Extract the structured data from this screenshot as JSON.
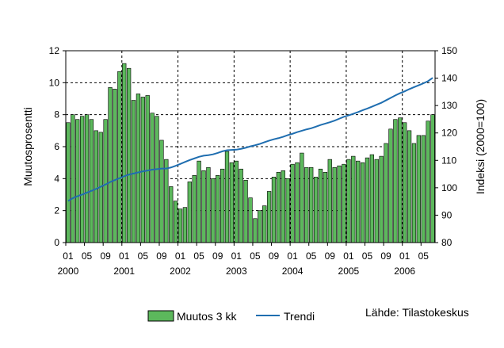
{
  "chart_data": {
    "type": "bar",
    "ylabel_left": "Muutosprosentti",
    "ylabel_right": "Indeksi (2000=100)",
    "ylim_left": [
      0,
      12
    ],
    "ylim_right": [
      80,
      150
    ],
    "yticks_left": [
      "0",
      "2",
      "4",
      "6",
      "8",
      "10",
      "12"
    ],
    "yticks_right": [
      "80",
      "90",
      "100",
      "110",
      "120",
      "130",
      "140",
      "150"
    ],
    "x_month_ticks": [
      "01",
      "05",
      "09",
      "01",
      "05",
      "09",
      "01",
      "05",
      "09",
      "01",
      "05",
      "09",
      "01",
      "05",
      "09",
      "01",
      "05",
      "09",
      "01",
      "05"
    ],
    "x_year_labels": [
      "2000",
      "2001",
      "2002",
      "2003",
      "2004",
      "2005",
      "2006"
    ],
    "grid": "dashed, vertical at each January and horizontal at each left-axis tick",
    "legend_position": "bottom-center",
    "series": [
      {
        "name": "Muutos 3 kk",
        "color": "#5cb85c",
        "values": [
          7.5,
          8.0,
          7.7,
          7.9,
          8.0,
          7.7,
          7.0,
          6.9,
          7.7,
          9.7,
          9.6,
          10.7,
          11.2,
          10.9,
          8.9,
          9.3,
          9.1,
          9.2,
          8.1,
          7.9,
          6.4,
          5.2,
          3.5,
          2.6,
          2.1,
          2.2,
          3.8,
          4.2,
          5.1,
          4.5,
          4.7,
          4.0,
          4.2,
          4.6,
          5.7,
          5.0,
          5.1,
          4.6,
          3.9,
          2.8,
          1.5,
          2.0,
          2.3,
          3.2,
          4.1,
          4.4,
          4.5,
          4.0,
          4.9,
          5.0,
          5.6,
          4.7,
          4.7,
          4.1,
          4.6,
          4.4,
          5.2,
          4.7,
          4.8,
          4.9,
          5.2,
          5.4,
          5.1,
          5.0,
          5.3,
          5.5,
          5.2,
          5.4,
          6.2,
          7.1,
          7.7,
          7.8,
          7.5,
          7.0,
          6.2,
          6.7,
          6.7,
          7.6,
          8.0
        ]
      },
      {
        "name": "Trendi",
        "color": "#1f6eb0",
        "values": [
          95.2,
          96.2,
          96.9,
          97.5,
          98.2,
          98.9,
          99.6,
          100.4,
          101.2,
          102.1,
          102.8,
          103.5,
          104.2,
          104.8,
          105.2,
          105.6,
          106.0,
          106.3,
          106.6,
          106.8,
          107.0,
          107.0,
          107.4,
          108.0,
          108.7,
          109.4,
          110.1,
          110.7,
          111.3,
          111.7,
          111.9,
          112.2,
          112.7,
          113.3,
          113.7,
          113.8,
          113.9,
          114.2,
          114.6,
          115.1,
          115.5,
          116.0,
          116.6,
          117.2,
          117.7,
          118.1,
          118.6,
          119.2,
          119.7,
          120.3,
          120.8,
          121.3,
          121.7,
          122.3,
          122.9,
          123.4,
          123.9,
          124.5,
          125.2,
          125.9,
          126.4,
          127.0,
          127.6,
          128.3,
          128.9,
          129.6,
          130.3,
          131.0,
          131.9,
          132.8,
          133.7,
          134.5,
          135.2,
          136.0,
          136.7,
          137.4,
          138.1,
          138.9,
          140.1
        ]
      }
    ]
  },
  "legend": {
    "bar_label": "Muutos 3 kk",
    "line_label": "Trendi"
  },
  "source": "Lähde: Tilastokeskus"
}
